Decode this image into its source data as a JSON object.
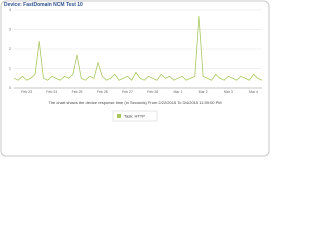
{
  "chart_data": {
    "type": "line",
    "title": "Device: FastDomain NCM Test 10",
    "caption": "The chart shows the device response time (in Seconds) From 2/22/2015 To 3/4/2015 11:59:00 PM",
    "categories": [
      null,
      null,
      null,
      "Feb 23",
      null,
      null,
      null,
      null,
      null,
      "Feb 24",
      null,
      null,
      null,
      null,
      null,
      "Feb 25",
      null,
      null,
      null,
      null,
      null,
      "Feb 26",
      null,
      null,
      null,
      null,
      null,
      "Feb 27",
      null,
      null,
      null,
      null,
      null,
      "Feb 28",
      null,
      null,
      null,
      null,
      null,
      "Mar 1",
      null,
      null,
      null,
      null,
      null,
      "Mar 2",
      null,
      null,
      null,
      null,
      null,
      "Mar 3",
      null,
      null,
      null,
      null,
      null,
      "Mar 4",
      null,
      null
    ],
    "series": [
      {
        "name": "Task: HTTP",
        "color": "#a8c85e",
        "values": [
          0.5,
          0.4,
          0.6,
          0.4,
          0.5,
          0.7,
          2.4,
          0.5,
          0.4,
          0.6,
          0.5,
          0.4,
          0.6,
          0.5,
          0.7,
          1.7,
          0.5,
          0.4,
          0.6,
          0.5,
          1.3,
          0.6,
          0.4,
          0.5,
          0.7,
          0.4,
          0.5,
          0.6,
          0.4,
          0.8,
          0.5,
          0.4,
          0.6,
          0.5,
          0.4,
          0.7,
          0.5,
          0.6,
          0.4,
          0.5,
          0.6,
          0.4,
          0.5,
          0.6,
          3.7,
          0.6,
          0.5,
          0.4,
          0.7,
          0.5,
          0.4,
          0.6,
          0.5,
          0.4,
          0.6,
          0.5,
          0.4,
          0.7,
          0.5,
          0.4
        ]
      }
    ],
    "ylim": [
      0,
      4
    ],
    "yticks": [
      0,
      1,
      2,
      3,
      4
    ],
    "grid": true
  }
}
